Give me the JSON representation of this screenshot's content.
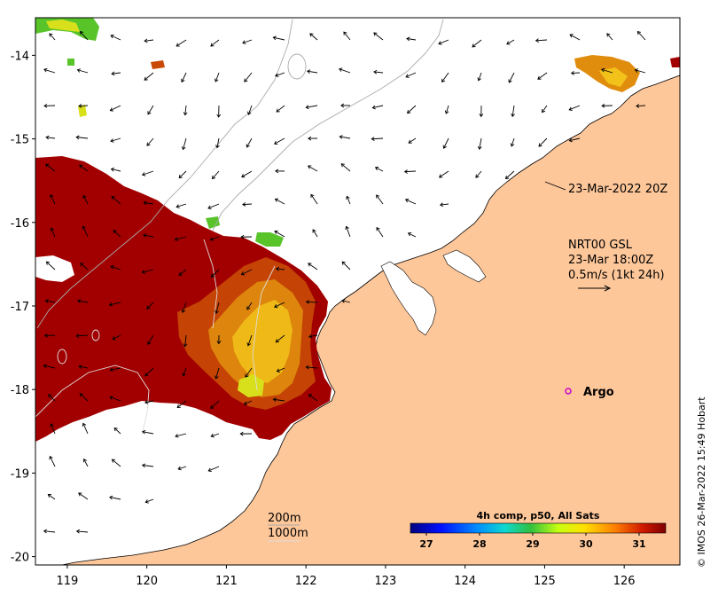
{
  "map": {
    "y_ticks": [
      "-14",
      "-15",
      "-16",
      "-17",
      "-18",
      "-19",
      "-20"
    ],
    "x_ticks": [
      "119",
      "120",
      "121",
      "122",
      "123",
      "124",
      "125",
      "126"
    ],
    "x_tick_values": [
      119,
      120,
      121,
      122,
      123,
      124,
      125,
      126
    ],
    "y_tick_values": [
      -14,
      -15,
      -16,
      -17,
      -18,
      -19,
      -20
    ],
    "lon_range": [
      118.6,
      126.7
    ],
    "lat_range": [
      -13.55,
      -20.1
    ],
    "land_color": "#fec79a",
    "sst_colors": [
      "#a20000",
      "#c84a06",
      "#e08d0e",
      "#f2c21a",
      "#d8e01c",
      "#58c42a"
    ]
  },
  "annotations": {
    "timestamp": "23-Mar-2022 20Z",
    "current_source": "NRT00 GSL",
    "current_time": "23-Mar 18:00Z",
    "current_scale": "0.5m/s (1kt 24h)",
    "argo_label": "Argo",
    "depth_200": "200m",
    "depth_1000": "1000m"
  },
  "colorbar": {
    "title": "4h comp, p50, All Sats",
    "ticks": [
      "27",
      "28",
      "29",
      "30",
      "31"
    ],
    "tick_values": [
      27,
      28,
      29,
      30,
      31
    ],
    "range": [
      26.7,
      31.5
    ]
  },
  "credit": "© IMOS 26-Mar-2022 15:49 Hobart",
  "argo_color": "#cc00cc",
  "arrow_color": "#000000"
}
